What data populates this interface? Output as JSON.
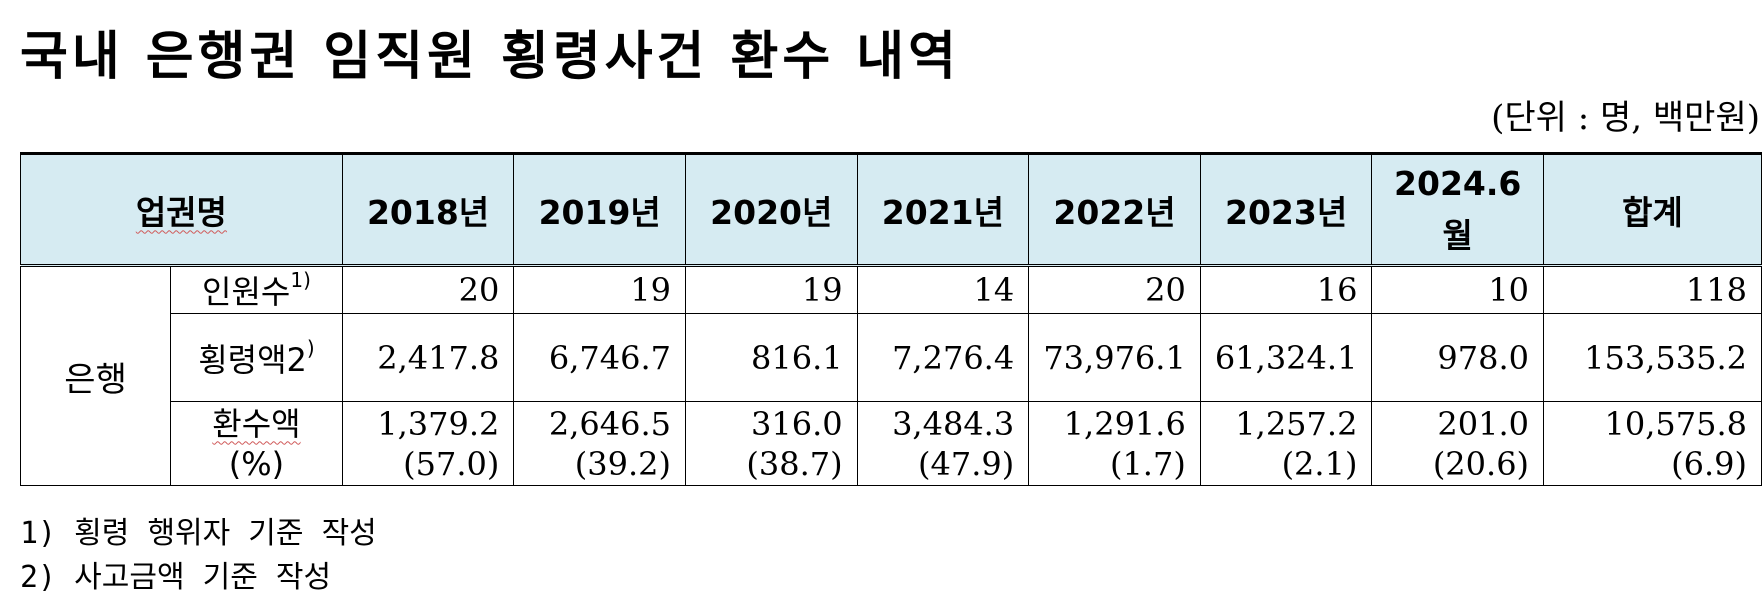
{
  "title": "국내 은행권 임직원 횡령사건 환수 내역",
  "unit": "(단위 : 명, 백만원)",
  "table": {
    "header": {
      "sector": "업권명",
      "y2018": "2018년",
      "y2019": "2019년",
      "y2020": "2020년",
      "y2021": "2021년",
      "y2022": "2022년",
      "y2023": "2023년",
      "y2024_line1": "2024.6",
      "y2024_line2": "월",
      "total": "합계"
    },
    "group_label": "은행",
    "rows": {
      "people": {
        "label": "인원수",
        "note_ref": "1)",
        "values": [
          "20",
          "19",
          "19",
          "14",
          "20",
          "16",
          "10",
          "118"
        ]
      },
      "embezzled": {
        "label": "횡령액2",
        "note_ref": ")",
        "values": [
          "2,417.8",
          "6,746.7",
          "816.1",
          "7,276.4",
          "73,976.1",
          "61,324.1",
          "978.0",
          "153,535.2"
        ]
      },
      "recovered": {
        "label": "환수액",
        "label_pct": "(%)",
        "values": [
          "1,379.2",
          "2,646.5",
          "316.0",
          "3,484.3",
          "1,291.6",
          "1,257.2",
          "201.0",
          "10,575.8"
        ],
        "percents": [
          "(57.0)",
          "(39.2)",
          "(38.7)",
          "(47.9)",
          "(1.7)",
          "(2.1)",
          "(20.6)",
          "(6.9)"
        ]
      }
    }
  },
  "notes": [
    "1) 횡령 행위자 기준 작성",
    "2) 사고금액 기준 작성"
  ]
}
